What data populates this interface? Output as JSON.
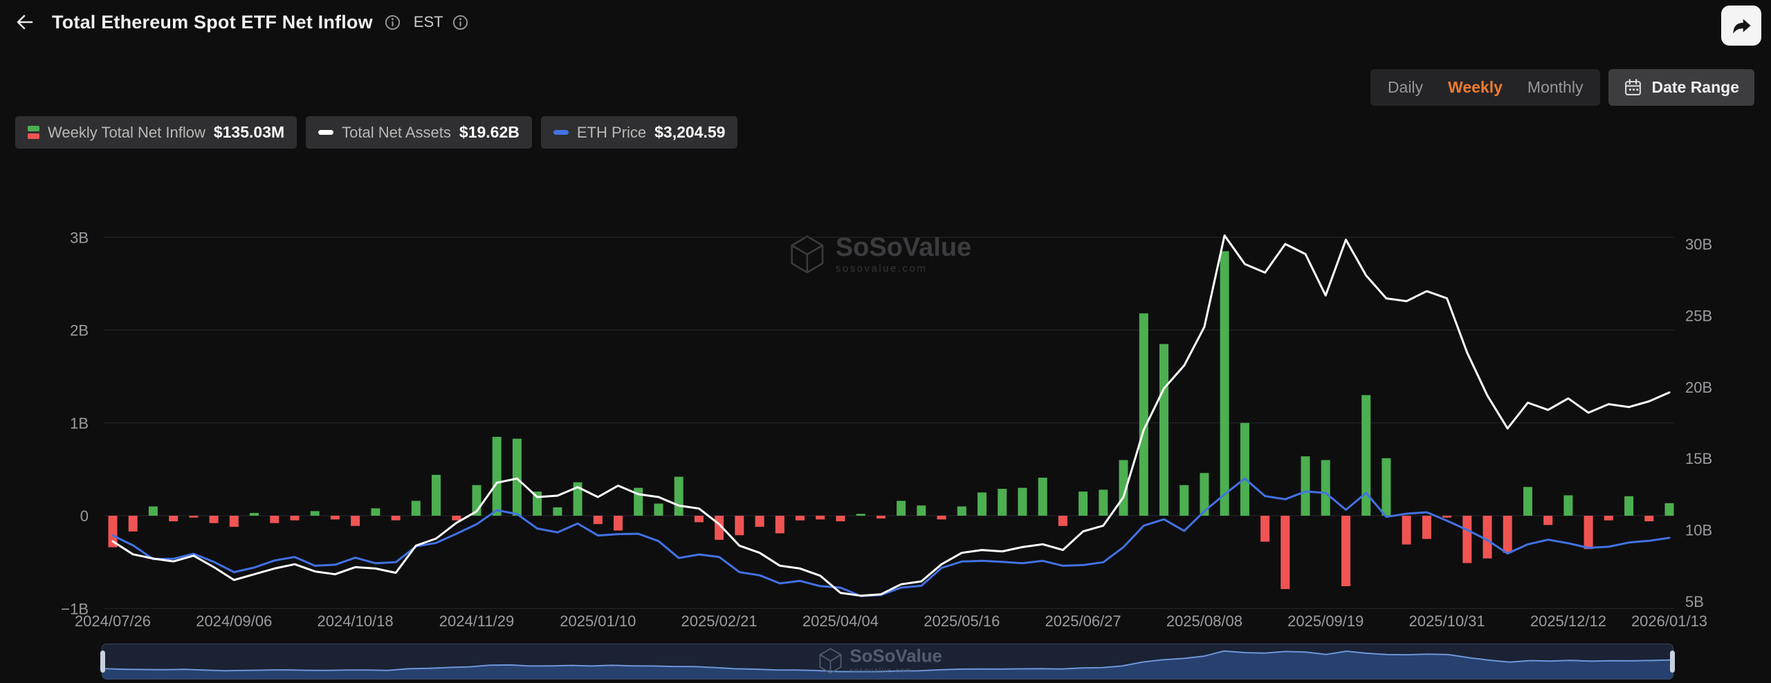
{
  "header": {
    "title": "Total Ethereum Spot ETF Net Inflow",
    "timezone": "EST",
    "icons": {
      "back": "back-arrow-icon",
      "title_info": "info-icon",
      "timezone_info": "info-icon",
      "share": "share-icon"
    }
  },
  "controls": {
    "period_options": [
      "Daily",
      "Weekly",
      "Monthly"
    ],
    "selected_period": "Weekly",
    "date_range_label": "Date Range",
    "calendar_icon": "calendar-icon",
    "accent_color": "#ee7c2f"
  },
  "legend": [
    {
      "label": "Weekly Total Net Inflow",
      "value": "$135.03M",
      "icon": "green-red-bars-icon",
      "color_positive": "#4caf50",
      "color_negative": "#f05452"
    },
    {
      "label": "Total Net Assets",
      "value": "$19.62B",
      "icon": "white-dash-icon",
      "color": "#ffffff"
    },
    {
      "label": "ETH Price",
      "value": "$3,204.59",
      "icon": "blue-dash-icon",
      "color": "#4272e3"
    }
  ],
  "watermark": {
    "name": "SoSoValue",
    "domain": "sosovalue.com",
    "icon": "cube-logo-icon"
  },
  "chart_data": {
    "type": "combo",
    "title": "Total Ethereum Spot ETF Net Inflow",
    "grid": "horizontal",
    "legend_position": "top-left",
    "x": [
      "2024/07/26",
      "2024/08/02",
      "2024/08/09",
      "2024/08/16",
      "2024/08/23",
      "2024/08/30",
      "2024/09/06",
      "2024/09/13",
      "2024/09/20",
      "2024/09/27",
      "2024/10/04",
      "2024/10/11",
      "2024/10/18",
      "2024/10/25",
      "2024/11/01",
      "2024/11/08",
      "2024/11/15",
      "2024/11/22",
      "2024/11/29",
      "2024/12/06",
      "2024/12/13",
      "2024/12/20",
      "2024/12/27",
      "2025/01/03",
      "2025/01/10",
      "2025/01/17",
      "2025/01/24",
      "2025/01/31",
      "2025/02/07",
      "2025/02/14",
      "2025/02/21",
      "2025/02/28",
      "2025/03/07",
      "2025/03/14",
      "2025/03/21",
      "2025/03/28",
      "2025/04/04",
      "2025/04/11",
      "2025/04/18",
      "2025/04/25",
      "2025/05/02",
      "2025/05/09",
      "2025/05/16",
      "2025/05/23",
      "2025/05/30",
      "2025/06/06",
      "2025/06/13",
      "2025/06/20",
      "2025/06/27",
      "2025/07/04",
      "2025/07/11",
      "2025/07/18",
      "2025/07/25",
      "2025/08/01",
      "2025/08/08",
      "2025/08/15",
      "2025/08/22",
      "2025/08/29",
      "2025/09/05",
      "2025/09/12",
      "2025/09/19",
      "2025/09/26",
      "2025/10/03",
      "2025/10/10",
      "2025/10/17",
      "2025/10/24",
      "2025/10/31",
      "2025/11/07",
      "2025/11/14",
      "2025/11/21",
      "2025/11/28",
      "2025/12/05",
      "2025/12/12",
      "2025/12/19",
      "2025/12/26",
      "2026/01/02",
      "2026/01/09",
      "2026/01/13"
    ],
    "x_tick_labels": [
      "2024/07/26",
      "2024/09/06",
      "2024/10/18",
      "2024/11/29",
      "2025/01/10",
      "2025/02/21",
      "2025/04/04",
      "2025/05/16",
      "2025/06/27",
      "2025/08/08",
      "2025/09/19",
      "2025/10/31",
      "2025/12/12",
      "2026/01/13"
    ],
    "x_tick_indices": [
      0,
      6,
      12,
      18,
      24,
      30,
      36,
      42,
      48,
      54,
      60,
      66,
      72,
      77
    ],
    "series": [
      {
        "name": "Weekly Total Net Inflow",
        "type": "bar",
        "axis": "left",
        "unit": "billion_usd",
        "color_positive": "#4caf50",
        "color_negative": "#f05452",
        "values": [
          -0.34,
          -0.17,
          0.1,
          -0.06,
          -0.02,
          -0.08,
          -0.12,
          0.03,
          -0.08,
          -0.05,
          0.05,
          -0.04,
          -0.11,
          0.08,
          -0.05,
          0.16,
          0.44,
          -0.05,
          0.33,
          0.85,
          0.83,
          0.26,
          0.09,
          0.36,
          -0.09,
          -0.16,
          0.3,
          0.13,
          0.42,
          -0.07,
          -0.26,
          -0.21,
          -0.12,
          -0.19,
          -0.05,
          -0.04,
          -0.06,
          0.02,
          -0.03,
          0.16,
          0.11,
          -0.04,
          0.1,
          0.25,
          0.29,
          0.3,
          0.41,
          -0.11,
          0.26,
          0.28,
          0.6,
          2.18,
          1.85,
          0.33,
          0.46,
          2.85,
          1.0,
          -0.28,
          -0.79,
          0.64,
          0.6,
          -0.76,
          1.3,
          0.62,
          -0.31,
          -0.25,
          -0.02,
          -0.51,
          -0.46,
          -0.4,
          0.31,
          -0.1,
          0.22,
          -0.36,
          -0.05,
          0.21,
          -0.06,
          0.135
        ]
      },
      {
        "name": "Total Net Assets",
        "type": "line",
        "axis": "right",
        "unit": "billion_usd",
        "color": "#ffffff",
        "values": [
          9.2,
          8.3,
          8.0,
          7.8,
          8.2,
          7.4,
          6.5,
          6.9,
          7.3,
          7.6,
          7.1,
          6.9,
          7.4,
          7.3,
          7.0,
          8.9,
          9.4,
          10.5,
          11.3,
          13.3,
          13.6,
          12.3,
          12.4,
          13.0,
          12.3,
          13.1,
          12.5,
          12.3,
          11.7,
          11.5,
          10.4,
          8.9,
          8.4,
          7.5,
          7.3,
          6.8,
          5.6,
          5.4,
          5.5,
          6.2,
          6.4,
          7.6,
          8.4,
          8.6,
          8.5,
          8.8,
          9.0,
          8.6,
          9.9,
          10.3,
          12.3,
          17.0,
          19.9,
          21.5,
          24.2,
          30.6,
          28.6,
          28.0,
          30.0,
          29.3,
          26.4,
          30.3,
          27.8,
          26.2,
          26.0,
          26.7,
          26.2,
          22.4,
          19.4,
          17.1,
          18.9,
          18.4,
          19.2,
          18.2,
          18.8,
          18.6,
          19.0,
          19.62
        ]
      },
      {
        "name": "ETH Price",
        "type": "line",
        "axis": "price_hidden",
        "unit": "usd",
        "color": "#4272e3",
        "values": [
          3270,
          2990,
          2600,
          2610,
          2750,
          2520,
          2230,
          2360,
          2560,
          2660,
          2410,
          2440,
          2640,
          2480,
          2510,
          2960,
          3060,
          3320,
          3590,
          3990,
          3880,
          3470,
          3360,
          3610,
          3270,
          3310,
          3320,
          3110,
          2630,
          2730,
          2660,
          2230,
          2140,
          1910,
          1980,
          1830,
          1790,
          1550,
          1580,
          1790,
          1840,
          2350,
          2530,
          2550,
          2520,
          2480,
          2550,
          2410,
          2430,
          2510,
          2940,
          3550,
          3730,
          3400,
          3960,
          4440,
          4890,
          4390,
          4300,
          4520,
          4480,
          4000,
          4480,
          3800,
          3890,
          3930,
          3690,
          3430,
          3140,
          2760,
          3020,
          3150,
          3050,
          2920,
          2950,
          3070,
          3120,
          3204.59
        ]
      }
    ],
    "left_axis": {
      "tick_labels": [
        "3B",
        "2B",
        "1B",
        "0",
        "−1B"
      ],
      "tick_values": [
        3,
        2,
        1,
        0,
        -1
      ],
      "min": -1,
      "max": 3
    },
    "right_axis": {
      "tick_labels": [
        "30B",
        "25B",
        "20B",
        "15B",
        "10B",
        "5B"
      ],
      "tick_values": [
        30,
        25,
        20,
        15,
        10,
        5
      ],
      "min": 5,
      "max": 30
    },
    "price_axis": {
      "visible": false,
      "min": 1200,
      "max": 11750
    }
  }
}
